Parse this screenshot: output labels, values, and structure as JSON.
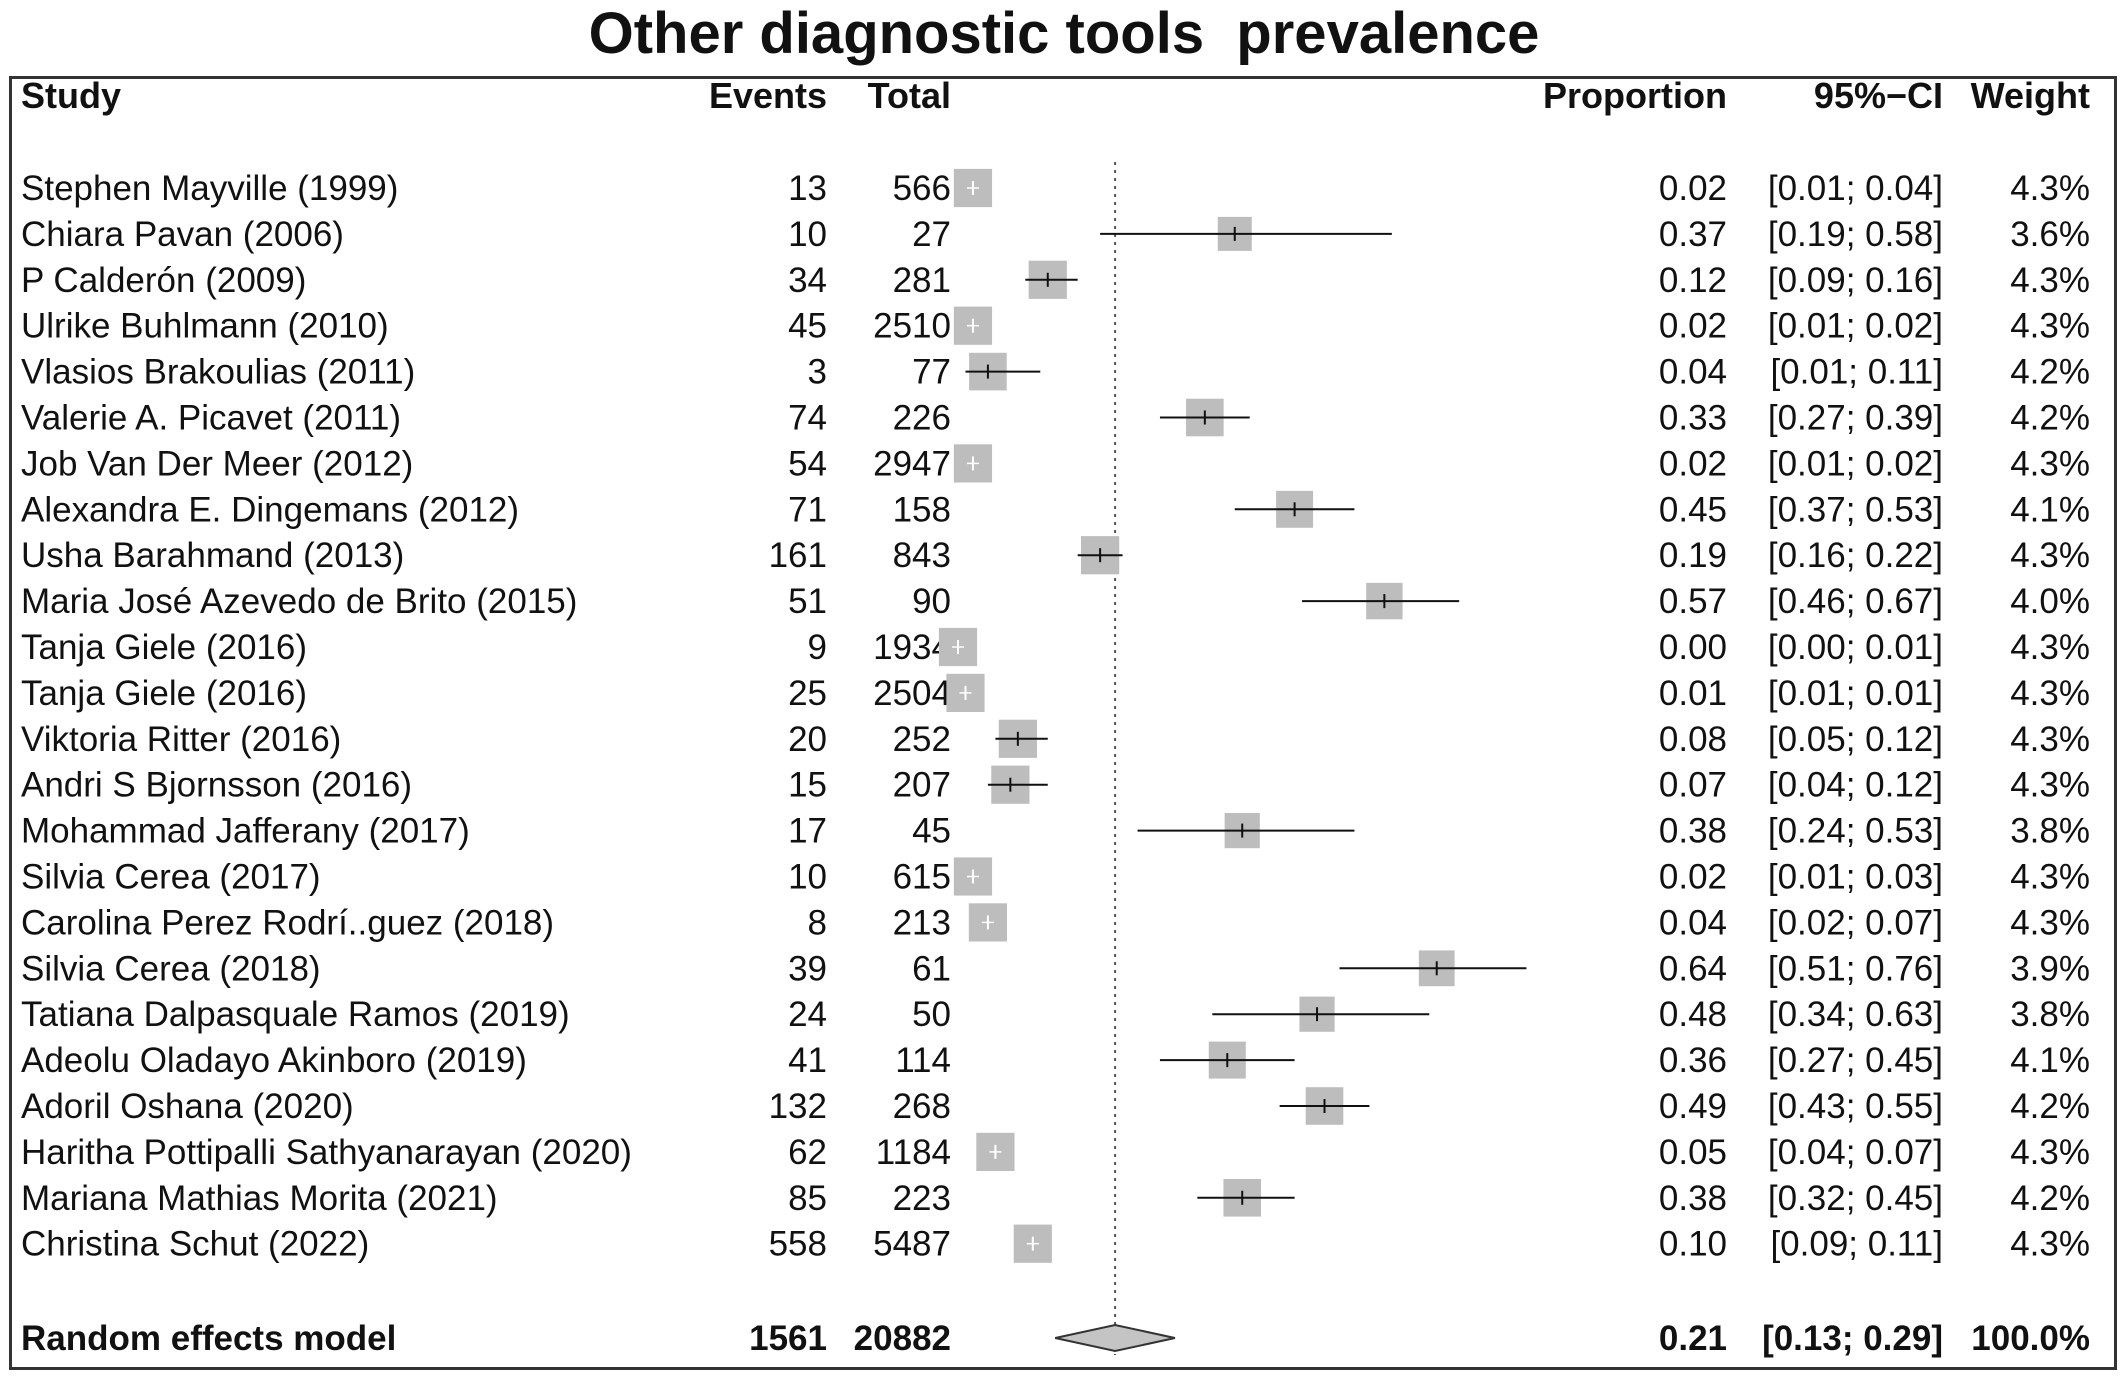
{
  "chart_data": {
    "type": "forest",
    "title": "Other diagnostic tools  prevalence",
    "columns": {
      "study": "Study",
      "events": "Events",
      "total": "Total",
      "proportion": "Proportion",
      "ci": "95%−CI",
      "weight": "Weight"
    },
    "xlim": [
      0,
      0.8
    ],
    "reference_line": 0.21,
    "studies": [
      {
        "study": "Stephen Mayville (1999)",
        "events": "13",
        "total": "566",
        "prop": 0.02,
        "lo": 0.01,
        "hi": 0.04,
        "prop_text": "0.02",
        "ci_text": "[0.01; 0.04]",
        "weight_text": "4.3%",
        "weight": 4.3
      },
      {
        "study": "Chiara Pavan (2006)",
        "events": "10",
        "total": "27",
        "prop": 0.37,
        "lo": 0.19,
        "hi": 0.58,
        "prop_text": "0.37",
        "ci_text": "[0.19; 0.58]",
        "weight_text": "3.6%",
        "weight": 3.6
      },
      {
        "study": "P Calderón (2009)",
        "events": "34",
        "total": "281",
        "prop": 0.12,
        "lo": 0.09,
        "hi": 0.16,
        "prop_text": "0.12",
        "ci_text": "[0.09; 0.16]",
        "weight_text": "4.3%",
        "weight": 4.3
      },
      {
        "study": "Ulrike Buhlmann (2010)",
        "events": "45",
        "total": "2510",
        "prop": 0.02,
        "lo": 0.01,
        "hi": 0.02,
        "prop_text": "0.02",
        "ci_text": "[0.01; 0.02]",
        "weight_text": "4.3%",
        "weight": 4.3
      },
      {
        "study": "Vlasios Brakoulias (2011)",
        "events": "3",
        "total": "77",
        "prop": 0.04,
        "lo": 0.01,
        "hi": 0.11,
        "prop_text": "0.04",
        "ci_text": "[0.01; 0.11]",
        "weight_text": "4.2%",
        "weight": 4.2
      },
      {
        "study": "Valerie A. Picavet (2011)",
        "events": "74",
        "total": "226",
        "prop": 0.33,
        "lo": 0.27,
        "hi": 0.39,
        "prop_text": "0.33",
        "ci_text": "[0.27; 0.39]",
        "weight_text": "4.2%",
        "weight": 4.2
      },
      {
        "study": "Job Van Der Meer (2012)",
        "events": "54",
        "total": "2947",
        "prop": 0.02,
        "lo": 0.01,
        "hi": 0.02,
        "prop_text": "0.02",
        "ci_text": "[0.01; 0.02]",
        "weight_text": "4.3%",
        "weight": 4.3
      },
      {
        "study": "Alexandra E. Dingemans (2012)",
        "events": "71",
        "total": "158",
        "prop": 0.45,
        "lo": 0.37,
        "hi": 0.53,
        "prop_text": "0.45",
        "ci_text": "[0.37; 0.53]",
        "weight_text": "4.1%",
        "weight": 4.1
      },
      {
        "study": "Usha Barahmand (2013)",
        "events": "161",
        "total": "843",
        "prop": 0.19,
        "lo": 0.16,
        "hi": 0.22,
        "prop_text": "0.19",
        "ci_text": "[0.16; 0.22]",
        "weight_text": "4.3%",
        "weight": 4.3
      },
      {
        "study": "Maria José Azevedo de Brito (2015)",
        "events": "51",
        "total": "90",
        "prop": 0.57,
        "lo": 0.46,
        "hi": 0.67,
        "prop_text": "0.57",
        "ci_text": "[0.46; 0.67]",
        "weight_text": "4.0%",
        "weight": 4.0
      },
      {
        "study": "Tanja Giele (2016)",
        "events": "9",
        "total": "1934",
        "prop": 0.0,
        "lo": 0.0,
        "hi": 0.01,
        "prop_text": "0.00",
        "ci_text": "[0.00; 0.01]",
        "weight_text": "4.3%",
        "weight": 4.3
      },
      {
        "study": "Tanja Giele (2016)",
        "events": "25",
        "total": "2504",
        "prop": 0.01,
        "lo": 0.01,
        "hi": 0.01,
        "prop_text": "0.01",
        "ci_text": "[0.01; 0.01]",
        "weight_text": "4.3%",
        "weight": 4.3
      },
      {
        "study": "Viktoria Ritter (2016)",
        "events": "20",
        "total": "252",
        "prop": 0.08,
        "lo": 0.05,
        "hi": 0.12,
        "prop_text": "0.08",
        "ci_text": "[0.05; 0.12]",
        "weight_text": "4.3%",
        "weight": 4.3
      },
      {
        "study": "Andri S Bjornsson (2016)",
        "events": "15",
        "total": "207",
        "prop": 0.07,
        "lo": 0.04,
        "hi": 0.12,
        "prop_text": "0.07",
        "ci_text": "[0.04; 0.12]",
        "weight_text": "4.3%",
        "weight": 4.3
      },
      {
        "study": "Mohammad Jafferany (2017)",
        "events": "17",
        "total": "45",
        "prop": 0.38,
        "lo": 0.24,
        "hi": 0.53,
        "prop_text": "0.38",
        "ci_text": "[0.24; 0.53]",
        "weight_text": "3.8%",
        "weight": 3.8
      },
      {
        "study": "Silvia Cerea (2017)",
        "events": "10",
        "total": "615",
        "prop": 0.02,
        "lo": 0.01,
        "hi": 0.03,
        "prop_text": "0.02",
        "ci_text": "[0.01; 0.03]",
        "weight_text": "4.3%",
        "weight": 4.3
      },
      {
        "study": "Carolina Perez Rodrí..guez (2018)",
        "events": "8",
        "total": "213",
        "prop": 0.04,
        "lo": 0.02,
        "hi": 0.07,
        "prop_text": "0.04",
        "ci_text": "[0.02; 0.07]",
        "weight_text": "4.3%",
        "weight": 4.3
      },
      {
        "study": "Silvia Cerea (2018)",
        "events": "39",
        "total": "61",
        "prop": 0.64,
        "lo": 0.51,
        "hi": 0.76,
        "prop_text": "0.64",
        "ci_text": "[0.51; 0.76]",
        "weight_text": "3.9%",
        "weight": 3.9
      },
      {
        "study": "Tatiana Dalpasquale Ramos (2019)",
        "events": "24",
        "total": "50",
        "prop": 0.48,
        "lo": 0.34,
        "hi": 0.63,
        "prop_text": "0.48",
        "ci_text": "[0.34; 0.63]",
        "weight_text": "3.8%",
        "weight": 3.8
      },
      {
        "study": "Adeolu Oladayo Akinboro (2019)",
        "events": "41",
        "total": "114",
        "prop": 0.36,
        "lo": 0.27,
        "hi": 0.45,
        "prop_text": "0.36",
        "ci_text": "[0.27; 0.45]",
        "weight_text": "4.1%",
        "weight": 4.1
      },
      {
        "study": "Adoril Oshana (2020)",
        "events": "132",
        "total": "268",
        "prop": 0.49,
        "lo": 0.43,
        "hi": 0.55,
        "prop_text": "0.49",
        "ci_text": "[0.43; 0.55]",
        "weight_text": "4.2%",
        "weight": 4.2
      },
      {
        "study": "Haritha Pottipalli Sathyanarayan (2020)",
        "events": "62",
        "total": "1184",
        "prop": 0.05,
        "lo": 0.04,
        "hi": 0.07,
        "prop_text": "0.05",
        "ci_text": "[0.04; 0.07]",
        "weight_text": "4.3%",
        "weight": 4.3
      },
      {
        "study": "Mariana Mathias Morita (2021)",
        "events": "85",
        "total": "223",
        "prop": 0.38,
        "lo": 0.32,
        "hi": 0.45,
        "prop_text": "0.38",
        "ci_text": "[0.32; 0.45]",
        "weight_text": "4.2%",
        "weight": 4.2
      },
      {
        "study": "Christina Schut (2022)",
        "events": "558",
        "total": "5487",
        "prop": 0.1,
        "lo": 0.09,
        "hi": 0.11,
        "prop_text": "0.10",
        "ci_text": "[0.09; 0.11]",
        "weight_text": "4.3%",
        "weight": 4.3
      }
    ],
    "pooled": {
      "label": "Random effects model",
      "events": "1561",
      "total": "20882",
      "prop": 0.21,
      "lo": 0.13,
      "hi": 0.29,
      "prop_text": "0.21",
      "ci_text": "[0.13; 0.29]",
      "weight_text": "100.0%"
    },
    "colors": {
      "square": "#bdbdbd",
      "diamond": "#c4c4c4",
      "line": "#111111",
      "square_tick_on_small": "#ffffff"
    }
  }
}
